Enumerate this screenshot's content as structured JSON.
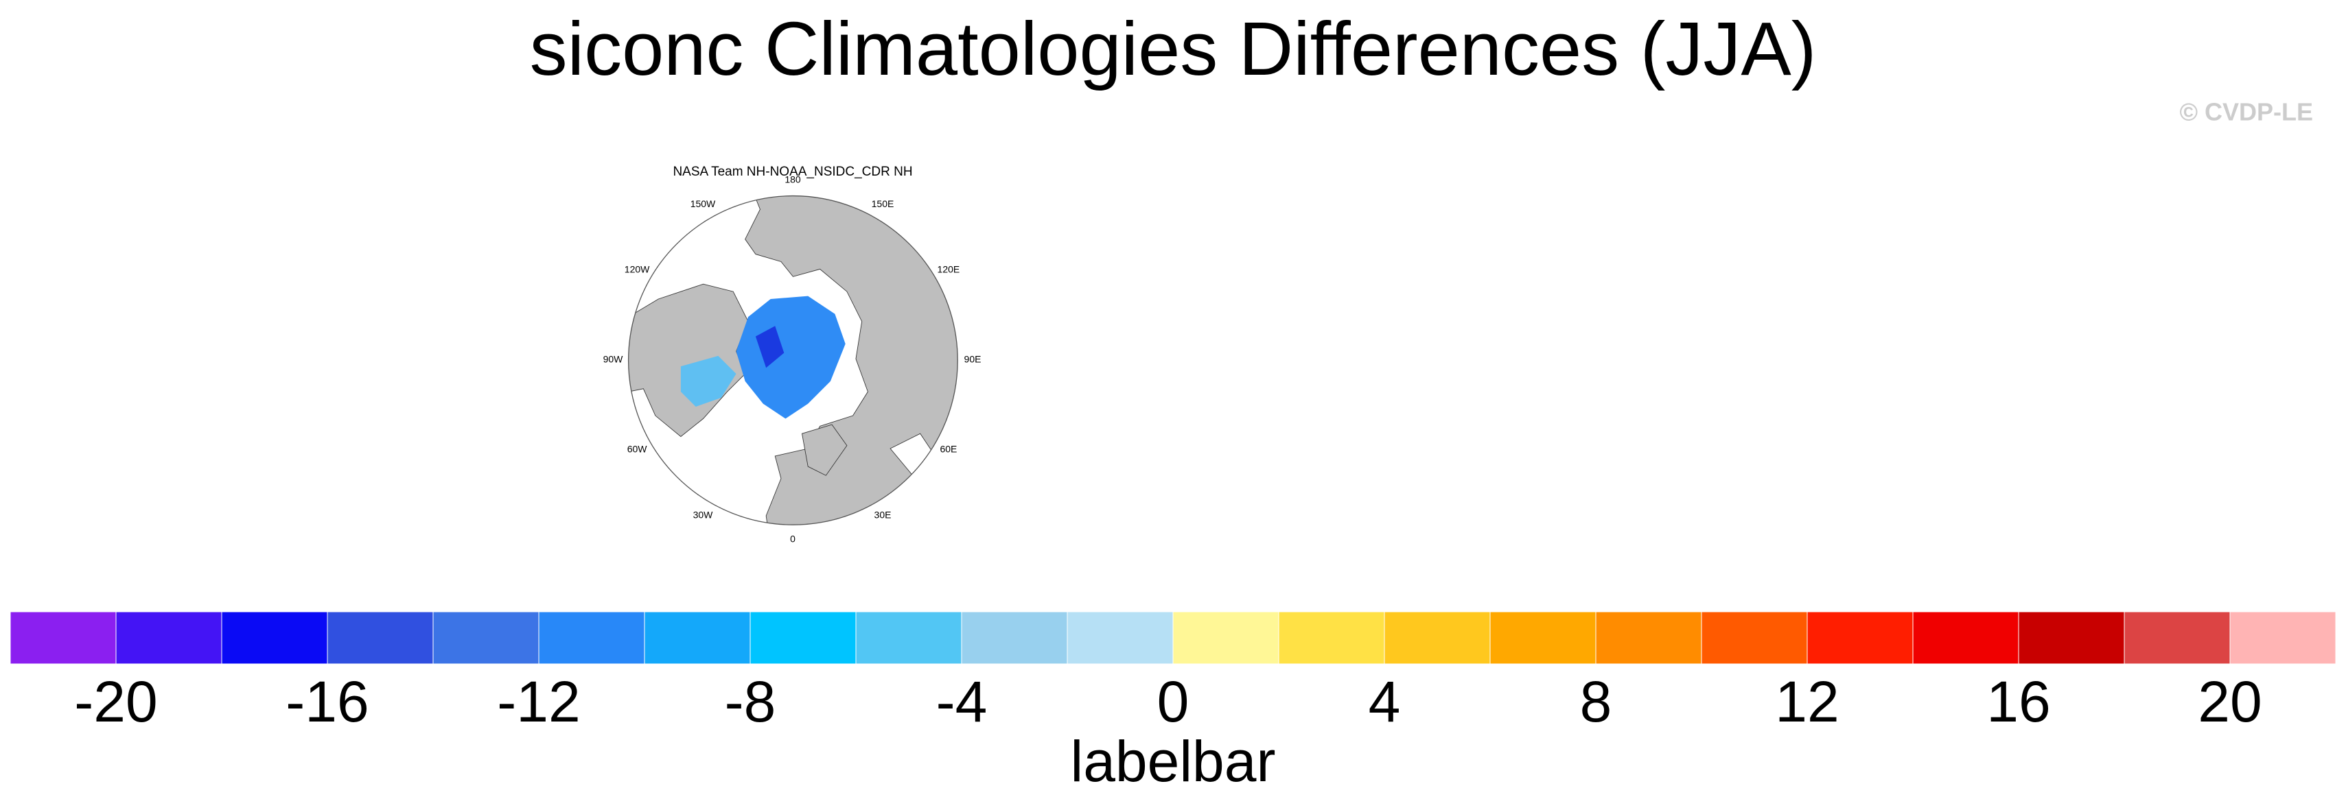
{
  "chart_data": {
    "type": "map",
    "title": "siconc Climatologies Differences (JJA)",
    "watermark": "© CVDP-LE",
    "subtitle": "NASA Team NH-NOAA_NSIDC_CDR NH",
    "lon_labels": [
      "180",
      "150E",
      "120E",
      "90E",
      "60E",
      "30E",
      "0",
      "30W",
      "60W",
      "90W",
      "120W",
      "150W"
    ],
    "colorbar": {
      "levels": [
        -20,
        -18,
        -16,
        -14,
        -12,
        -10,
        -8,
        -6,
        -4,
        -2,
        0,
        2,
        4,
        6,
        8,
        10,
        12,
        14,
        16,
        18,
        20
      ],
      "colors": [
        "#8b1ff0",
        "#4414f5",
        "#0a0af5",
        "#3050e0",
        "#3c74e6",
        "#2888f8",
        "#14a8fa",
        "#00c4ff",
        "#52c6f4",
        "#98d0ee",
        "#b6e0f5",
        "#fff796",
        "#ffe145",
        "#ffc81e",
        "#ffa800",
        "#ff8c00",
        "#ff5a00",
        "#ff1e00",
        "#f00000",
        "#c80000",
        "#dc4444",
        "#ffb4b4"
      ],
      "ticks": [
        -20,
        -16,
        -12,
        -8,
        -4,
        0,
        4,
        8,
        12,
        16,
        20
      ],
      "label": "labelbar"
    }
  }
}
